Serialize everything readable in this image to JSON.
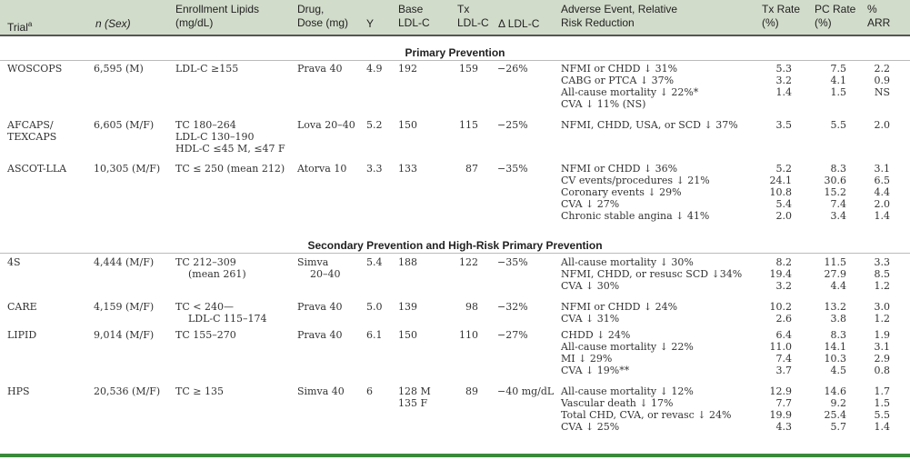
{
  "header": {
    "trial": "Trial",
    "trial_sup": "a",
    "n_sex": "n (Sex)",
    "enrollment": "Enrollment Lipids\n(mg/dL)",
    "drug": "Drug,\nDose (mg)",
    "y": "Y",
    "base": "Base\nLDL-C",
    "tx": "Tx\nLDL-C",
    "delta": "Δ LDL-C",
    "adverse": "Adverse Event, Relative\nRisk Reduction",
    "txrate": "Tx Rate\n(%)",
    "pcrate": "PC Rate\n(%)",
    "arr": "%\nARR"
  },
  "sections": {
    "primary": "Primary Prevention",
    "secondary": "Secondary Prevention and High-Risk Primary Prevention"
  },
  "rows": [
    {
      "trial": "WOSCOPS",
      "n": "6,595 (M)",
      "lipids": "LDL-C ≥155",
      "drug": "Prava 40",
      "y": "4.9",
      "base": "192",
      "tx": "159",
      "delta": "−26%",
      "events": [
        "NFMI or CHDD ↓ 31%",
        "CABG or PTCA ↓ 37%",
        "All-cause mortality ↓ 22%*",
        "CVA ↓ 11% (NS)"
      ],
      "txrate": [
        "5.3",
        "3.2",
        "1.4"
      ],
      "pcrate": [
        "7.5",
        "4.1",
        "1.5"
      ],
      "arr": [
        "2.2",
        "0.9",
        "NS"
      ]
    },
    {
      "trial": "AFCAPS/\nTEXCAPS",
      "n": "6,605 (M/F)",
      "lipids": "TC 180–264\nLDL-C 130–190\nHDL-C ≤45 M, ≤47 F",
      "drug": "Lova 20–40",
      "y": "5.2",
      "base": "150",
      "tx": "115",
      "delta": "−25%",
      "events": [
        "NFMI, CHDD, USA, or SCD ↓ 37%"
      ],
      "txrate": [
        "3.5"
      ],
      "pcrate": [
        "5.5"
      ],
      "arr": [
        "2.0"
      ]
    },
    {
      "trial": "ASCOT-LLA",
      "n": "10,305 (M/F)",
      "lipids": "TC ≤ 250 (mean 212)",
      "drug": "Atorva 10",
      "y": "3.3",
      "base": "133",
      "tx": "87",
      "delta": "−35%",
      "events": [
        "NFMI or CHDD ↓ 36%",
        "CV events/procedures ↓ 21%",
        "Coronary events ↓ 29%",
        "CVA ↓ 27%",
        "Chronic stable angina ↓ 41%"
      ],
      "txrate": [
        "5.2",
        "24.1",
        "10.8",
        "5.4",
        "2.0"
      ],
      "pcrate": [
        "8.3",
        "30.6",
        "15.2",
        "7.4",
        "3.4"
      ],
      "arr": [
        "3.1",
        "6.5",
        "4.4",
        "2.0",
        "1.4"
      ]
    },
    {
      "trial": "4S",
      "n": "4,444 (M/F)",
      "lipids": "TC 212–309\n    (mean 261)",
      "drug": "Simva\n    20–40",
      "y": "5.4",
      "base": "188",
      "tx": "122",
      "delta": "−35%",
      "events": [
        "All-cause mortality ↓ 30%",
        "NFMI, CHDD, or resusc SCD ↓34%",
        "CVA ↓ 30%"
      ],
      "txrate": [
        "8.2",
        "19.4",
        "3.2"
      ],
      "pcrate": [
        "11.5",
        "27.9",
        "4.4"
      ],
      "arr": [
        "3.3",
        "8.5",
        "1.2"
      ]
    },
    {
      "trial": "CARE",
      "n": "4,159 (M/F)",
      "lipids": "TC < 240—\n    LDL-C 115–174",
      "drug": "Prava 40",
      "y": "5.0",
      "base": "139",
      "tx": "98",
      "delta": "−32%",
      "events": [
        "NFMI or CHDD ↓ 24%",
        "CVA ↓ 31%"
      ],
      "txrate": [
        "10.2",
        "2.6"
      ],
      "pcrate": [
        "13.2",
        "3.8"
      ],
      "arr": [
        "3.0",
        "1.2"
      ]
    },
    {
      "trial": "LIPID",
      "n": "9,014 (M/F)",
      "lipids": "TC 155–270",
      "drug": "Prava 40",
      "y": "6.1",
      "base": "150",
      "tx": "110",
      "delta": "−27%",
      "events": [
        "CHDD ↓ 24%",
        "All-cause mortality ↓ 22%",
        "MI ↓ 29%",
        "CVA ↓ 19%**"
      ],
      "txrate": [
        "6.4",
        "11.0",
        "7.4",
        "3.7"
      ],
      "pcrate": [
        "8.3",
        "14.1",
        "10.3",
        "4.5"
      ],
      "arr": [
        "1.9",
        "3.1",
        "2.9",
        "0.8"
      ]
    },
    {
      "trial": "HPS",
      "n": "20,536 (M/F)",
      "lipids": "TC ≥ 135",
      "drug": "Simva 40",
      "y": "6",
      "base": "128 M\n135 F",
      "tx": "89",
      "delta": "−40 mg/dL",
      "events": [
        "All-cause mortality ↓ 12%",
        "Vascular death ↓ 17%",
        "Total CHD, CVA, or revasc ↓ 24%",
        "CVA ↓ 25%"
      ],
      "txrate": [
        "12.9",
        "7.7",
        "19.9",
        "4.3"
      ],
      "pcrate": [
        "14.6",
        "9.2",
        "25.4",
        "5.7"
      ],
      "arr": [
        "1.7",
        "1.5",
        "5.5",
        "1.4"
      ]
    }
  ]
}
